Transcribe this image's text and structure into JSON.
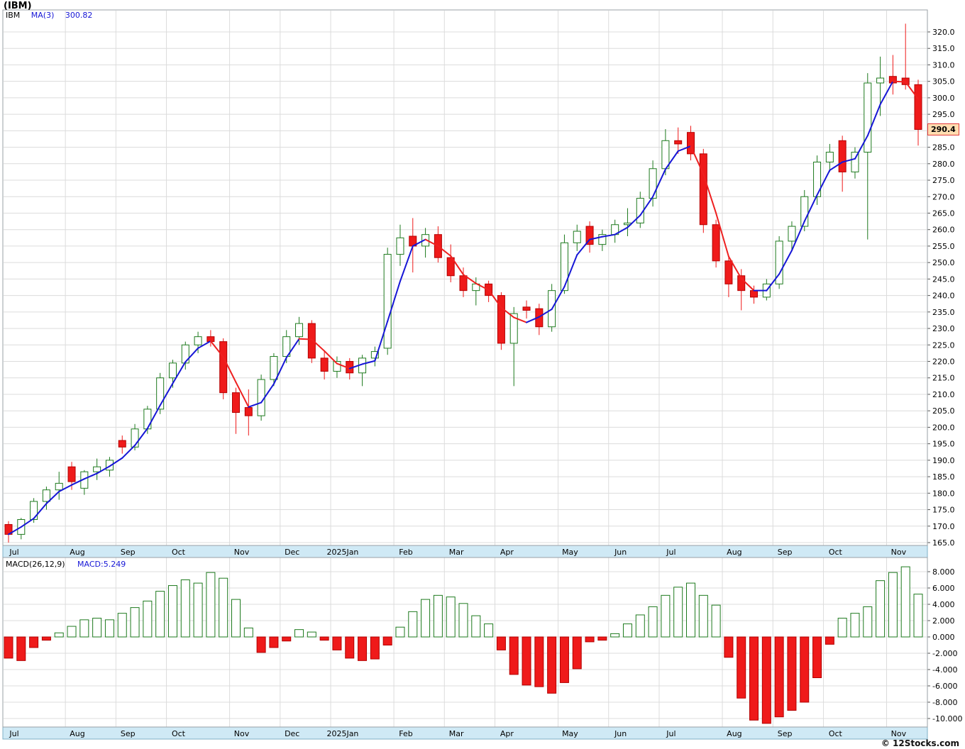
{
  "header": {
    "title": "(IBM)",
    "legend": {
      "symbol": "IBM",
      "ma_label": "MA(3)",
      "ma_value": "300.82"
    }
  },
  "macd_panel": {
    "label": "MACD(26,12,9)",
    "value_label": "MACD:5.249"
  },
  "price_axis": {
    "min": 165,
    "max": 320,
    "step": 5,
    "decimals": 1,
    "last_price": 290.4,
    "last_price_label": "290.4"
  },
  "macd_axis": {
    "min": -10,
    "max": 8,
    "step": 2,
    "decimals": 3
  },
  "footer": {
    "copyright": "© 12Stocks.com"
  },
  "colors": {
    "up": "#1e7a1e",
    "down": "#ef1a1a",
    "down_border": "#b30000",
    "ma_up": "#1616d6",
    "ma_down": "#ee2020",
    "grid": "#dcdcdc",
    "strip_bg": "#cfe9f5",
    "strip_border": "#7fb0c6",
    "panel_border": "#9aa0a6"
  },
  "chart_data": {
    "type": "candlestick_with_macd_histogram",
    "title": "(IBM)",
    "interval": "weekly",
    "price_range": [
      165,
      320
    ],
    "macd_range": [
      -10,
      8
    ],
    "legend": [
      "IBM",
      "MA(3) 300.82"
    ],
    "months": [
      {
        "label": "Jul",
        "weeks": 5
      },
      {
        "label": "Aug",
        "weeks": 4
      },
      {
        "label": "Sep",
        "weeks": 4
      },
      {
        "label": "Oct",
        "weeks": 5
      },
      {
        "label": "Nov",
        "weeks": 4
      },
      {
        "label": "Dec",
        "weeks": 4
      },
      {
        "label": "2025Jan",
        "weeks": 5
      },
      {
        "label": "Feb",
        "weeks": 4
      },
      {
        "label": "Mar",
        "weeks": 4
      },
      {
        "label": "Apr",
        "weeks": 5
      },
      {
        "label": "May",
        "weeks": 4
      },
      {
        "label": "Jun",
        "weeks": 4
      },
      {
        "label": "Jul",
        "weeks": 5
      },
      {
        "label": "Aug",
        "weeks": 4
      },
      {
        "label": "Sep",
        "weeks": 4
      },
      {
        "label": "Oct",
        "weeks": 5
      },
      {
        "label": "Nov",
        "weeks": 3
      }
    ],
    "candles": [
      [
        170.5,
        171.5,
        165.0,
        167.5
      ],
      [
        167.5,
        172.5,
        166.0,
        172.0
      ],
      [
        172.0,
        178.5,
        171.0,
        177.5
      ],
      [
        177.5,
        182.0,
        175.0,
        181.0
      ],
      [
        181.0,
        186.5,
        178.0,
        183.0
      ],
      [
        188.0,
        189.5,
        181.0,
        183.5
      ],
      [
        181.5,
        187.0,
        179.5,
        186.5
      ],
      [
        186.5,
        190.5,
        184.0,
        188.0
      ],
      [
        187.0,
        191.0,
        185.0,
        190.0
      ],
      [
        196.0,
        197.5,
        192.0,
        194.0
      ],
      [
        194.0,
        201.0,
        193.0,
        199.5
      ],
      [
        199.5,
        206.5,
        198.0,
        205.5
      ],
      [
        205.5,
        216.5,
        204.0,
        215.0
      ],
      [
        215.0,
        220.5,
        212.0,
        219.5
      ],
      [
        219.5,
        226.0,
        217.5,
        225.0
      ],
      [
        225.0,
        229.0,
        222.5,
        227.5
      ],
      [
        227.5,
        229.5,
        224.5,
        226.0
      ],
      [
        226.0,
        227.0,
        208.5,
        210.5
      ],
      [
        210.5,
        212.0,
        198.0,
        204.5
      ],
      [
        206.0,
        211.5,
        197.5,
        203.5
      ],
      [
        203.5,
        216.0,
        202.0,
        214.5
      ],
      [
        214.5,
        222.5,
        212.5,
        221.5
      ],
      [
        221.5,
        229.5,
        219.5,
        227.5
      ],
      [
        227.5,
        233.5,
        225.0,
        231.5
      ],
      [
        231.5,
        232.5,
        219.5,
        221.0
      ],
      [
        221.0,
        223.0,
        214.5,
        217.0
      ],
      [
        217.0,
        221.5,
        215.0,
        220.0
      ],
      [
        220.0,
        221.0,
        214.5,
        216.5
      ],
      [
        216.5,
        222.0,
        212.5,
        221.0
      ],
      [
        221.0,
        224.5,
        218.5,
        223.0
      ],
      [
        224.0,
        254.5,
        222.0,
        252.5
      ],
      [
        252.5,
        261.5,
        249.0,
        257.5
      ],
      [
        258.0,
        263.5,
        247.0,
        255.0
      ],
      [
        255.0,
        260.5,
        251.5,
        258.5
      ],
      [
        258.5,
        261.0,
        250.0,
        251.5
      ],
      [
        251.5,
        255.5,
        244.0,
        246.0
      ],
      [
        246.0,
        248.5,
        239.5,
        241.5
      ],
      [
        241.5,
        245.5,
        237.0,
        243.5
      ],
      [
        243.5,
        244.5,
        238.0,
        240.0
      ],
      [
        240.0,
        241.0,
        223.5,
        225.5
      ],
      [
        225.5,
        236.5,
        212.5,
        234.5
      ],
      [
        236.5,
        238.5,
        233.0,
        235.5
      ],
      [
        236.0,
        237.5,
        228.0,
        230.5
      ],
      [
        230.5,
        243.5,
        229.0,
        241.5
      ],
      [
        241.5,
        258.5,
        240.5,
        256.0
      ],
      [
        256.0,
        261.5,
        253.5,
        259.5
      ],
      [
        261.0,
        262.5,
        253.0,
        255.5
      ],
      [
        255.5,
        260.0,
        253.5,
        258.5
      ],
      [
        258.5,
        263.0,
        256.0,
        261.5
      ],
      [
        261.5,
        266.5,
        258.0,
        262.0
      ],
      [
        262.0,
        271.5,
        260.5,
        269.5
      ],
      [
        269.5,
        281.0,
        267.0,
        278.5
      ],
      [
        278.5,
        290.5,
        276.5,
        287.0
      ],
      [
        287.0,
        291.0,
        283.0,
        286.0
      ],
      [
        289.5,
        291.5,
        281.0,
        283.0
      ],
      [
        283.0,
        284.5,
        259.0,
        261.5
      ],
      [
        261.5,
        263.0,
        248.5,
        250.5
      ],
      [
        250.5,
        252.0,
        239.5,
        243.5
      ],
      [
        246.0,
        248.0,
        235.5,
        241.5
      ],
      [
        241.5,
        243.0,
        237.5,
        239.5
      ],
      [
        239.5,
        245.0,
        238.5,
        243.5
      ],
      [
        243.5,
        258.0,
        242.0,
        256.5
      ],
      [
        256.5,
        262.5,
        253.5,
        261.0
      ],
      [
        261.0,
        272.0,
        259.5,
        270.0
      ],
      [
        270.0,
        282.5,
        267.5,
        280.5
      ],
      [
        280.5,
        286.0,
        277.5,
        283.5
      ],
      [
        287.0,
        288.5,
        271.5,
        277.5
      ],
      [
        277.5,
        285.0,
        275.5,
        283.5
      ],
      [
        283.5,
        307.5,
        257.0,
        304.5
      ],
      [
        304.5,
        312.5,
        294.5,
        306.0
      ],
      [
        306.5,
        313.0,
        301.0,
        304.5
      ],
      [
        306.0,
        322.5,
        302.5,
        304.0
      ],
      [
        304.0,
        305.5,
        285.5,
        290.4
      ]
    ],
    "macd": [
      -2.6,
      -2.9,
      -1.3,
      -0.4,
      0.5,
      1.3,
      2.1,
      2.3,
      2.1,
      2.9,
      3.6,
      4.4,
      5.6,
      6.3,
      7.0,
      6.6,
      7.9,
      7.2,
      4.6,
      1.1,
      -1.9,
      -1.3,
      -0.5,
      0.9,
      0.6,
      -0.4,
      -1.6,
      -2.6,
      -2.9,
      -2.7,
      -1.0,
      1.2,
      3.1,
      4.6,
      5.1,
      4.9,
      4.1,
      2.6,
      1.6,
      -1.6,
      -4.6,
      -5.9,
      -6.1,
      -6.9,
      -5.6,
      -3.9,
      -0.6,
      -0.4,
      0.4,
      1.6,
      2.7,
      3.7,
      5.1,
      6.1,
      6.6,
      5.1,
      3.9,
      -2.5,
      -7.5,
      -10.2,
      -10.6,
      -9.8,
      -9.0,
      -8.0,
      -5.0,
      -0.9,
      2.3,
      2.9,
      3.7,
      6.9,
      7.9,
      8.6,
      5.249
    ]
  }
}
